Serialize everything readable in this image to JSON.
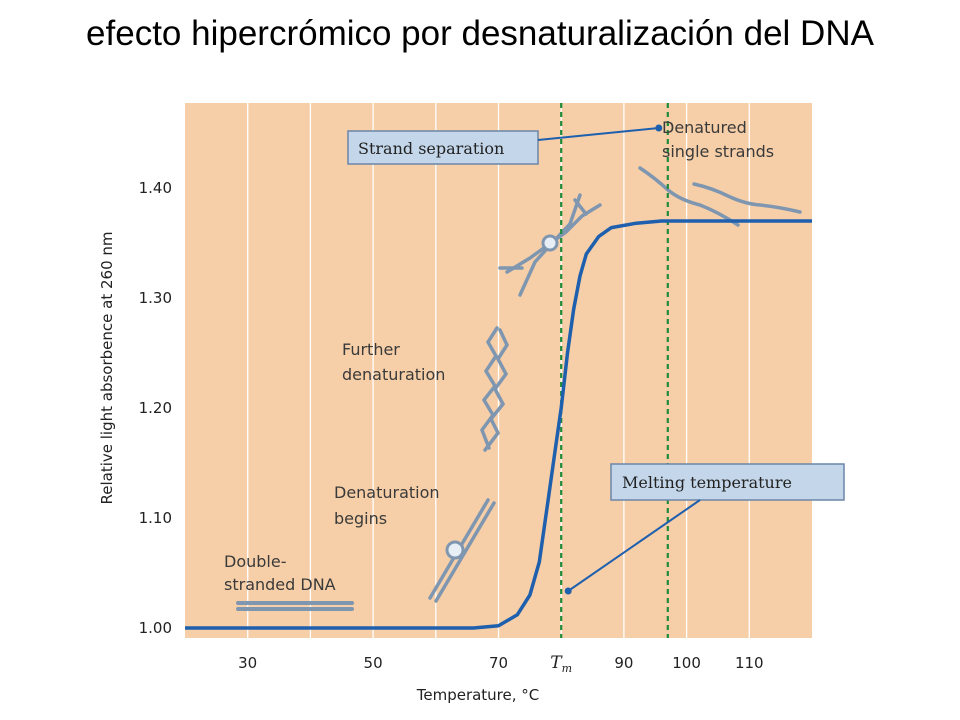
{
  "slide": {
    "title": "efecto hipercrómico por desnaturalización del DNA"
  },
  "colors": {
    "plot_bg": "#f6cfa8",
    "grid": "#ffffff",
    "curve": "#1e5fae",
    "guide": "#1f8a3a",
    "callout_bg": "#c4d7ea",
    "callout_border": "#6b86a8",
    "dna": "#7f96b0"
  },
  "chart_data": {
    "type": "line",
    "title": "",
    "xlabel": "Temperature, °C",
    "ylabel": "Relative light absorbence at 260 nm",
    "xlim": [
      20,
      120
    ],
    "ylim": [
      1.0,
      1.48
    ],
    "x_ticks": [
      30,
      50,
      70,
      90,
      100,
      110
    ],
    "x_tm_tick": {
      "label": "T",
      "sub": "m",
      "x": 80
    },
    "y_ticks": [
      {
        "value": 1.0,
        "label": "1.00"
      },
      {
        "value": 1.1,
        "label": "1.10"
      },
      {
        "value": 1.2,
        "label": "1.20"
      },
      {
        "value": 1.3,
        "label": "1.30"
      },
      {
        "value": 1.4,
        "label": "1.40"
      }
    ],
    "grid": "vertical white lines",
    "series": [
      {
        "values": [
          [
            20,
            1.0
          ],
          [
            60,
            1.0
          ],
          [
            66,
            1.0
          ],
          [
            70,
            1.002
          ],
          [
            73,
            1.012
          ],
          [
            75,
            1.03
          ],
          [
            76.5,
            1.06
          ],
          [
            78,
            1.12
          ],
          [
            79,
            1.16
          ],
          [
            80,
            1.2
          ],
          [
            81,
            1.25
          ],
          [
            82,
            1.29
          ],
          [
            83,
            1.32
          ],
          [
            84,
            1.34
          ],
          [
            86,
            1.356
          ],
          [
            88,
            1.364
          ],
          [
            92,
            1.368
          ],
          [
            96,
            1.37
          ],
          [
            120,
            1.37
          ]
        ]
      }
    ],
    "vertical_guides": [
      80,
      97
    ],
    "annotations": {
      "strand_separation": "Strand separation",
      "denatured_single_strands": [
        "Denatured",
        "single strands"
      ],
      "further_denaturation": [
        "Further",
        "denaturation"
      ],
      "denaturation_begins": [
        "Denaturation",
        "begins"
      ],
      "double_stranded": [
        "Double-",
        "stranded DNA"
      ],
      "melting_temperature": "Melting temperature"
    }
  }
}
